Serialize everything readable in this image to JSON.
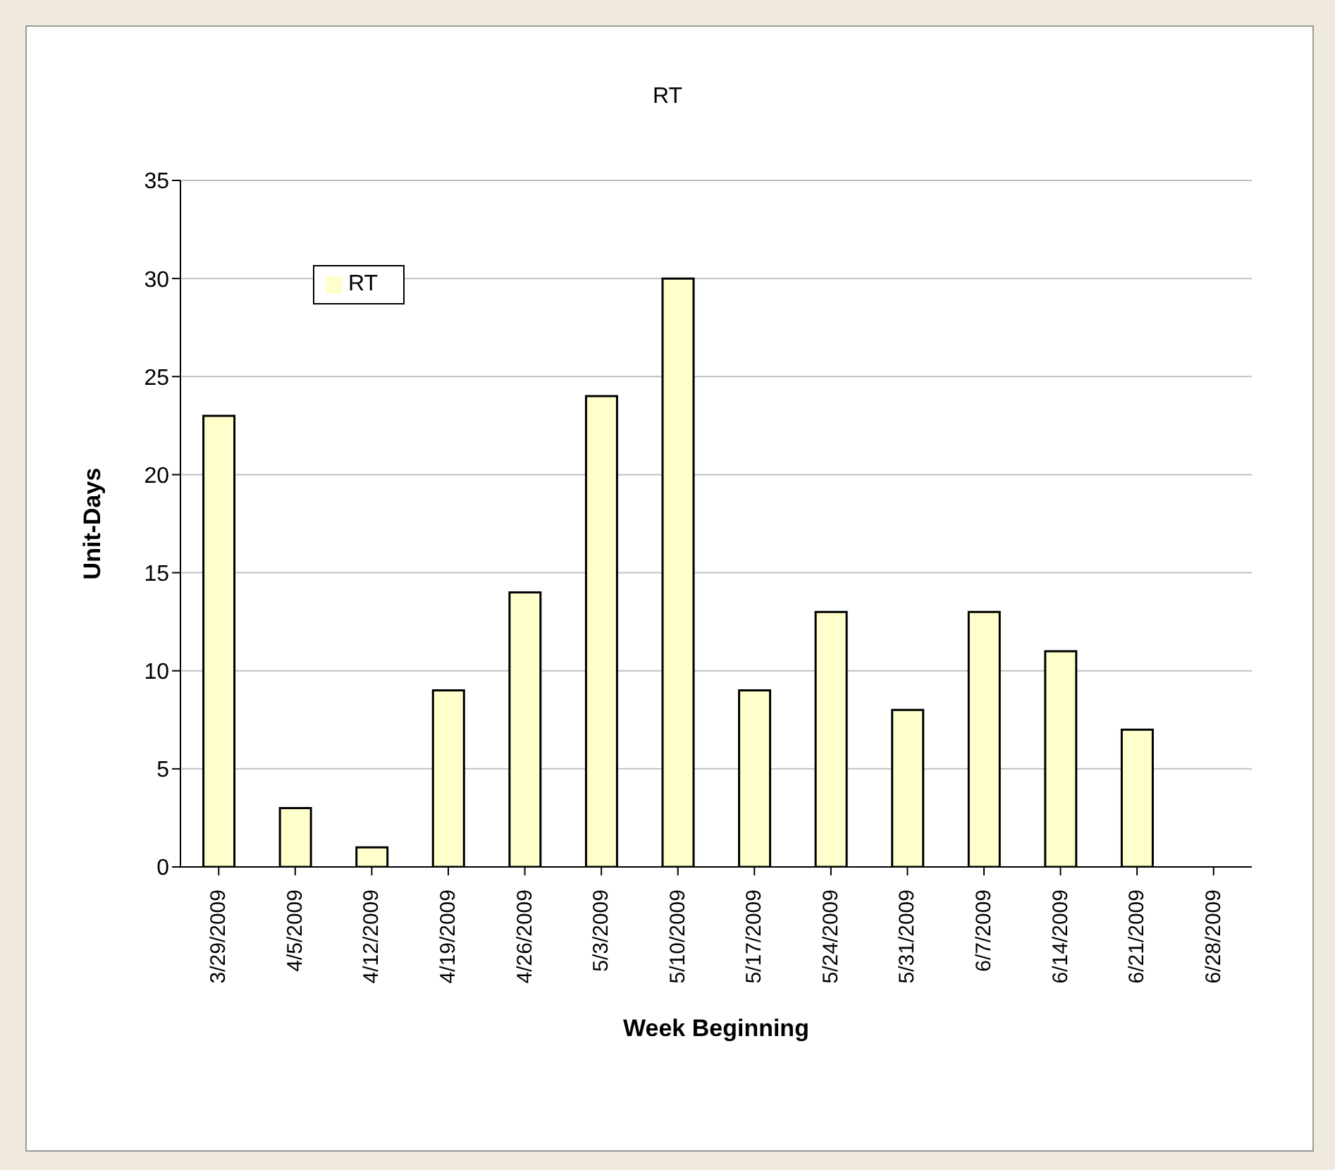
{
  "chart_data": {
    "type": "bar",
    "title": "RT",
    "xlabel": "Week Beginning",
    "ylabel": "Unit-Days",
    "categories": [
      "3/29/2009",
      "4/5/2009",
      "4/12/2009",
      "4/19/2009",
      "4/26/2009",
      "5/3/2009",
      "5/10/2009",
      "5/17/2009",
      "5/24/2009",
      "5/31/2009",
      "6/7/2009",
      "6/14/2009",
      "6/21/2009",
      "6/28/2009"
    ],
    "series": [
      {
        "name": "RT",
        "color": "#ffffcc",
        "values": [
          23,
          3,
          1,
          9,
          14,
          24,
          30,
          9,
          13,
          8,
          13,
          11,
          7,
          0
        ]
      }
    ],
    "ylim": [
      0,
      35
    ],
    "yticks": [
      0,
      5,
      10,
      15,
      20,
      25,
      30,
      35
    ],
    "grid": "y",
    "legend": "top left"
  }
}
